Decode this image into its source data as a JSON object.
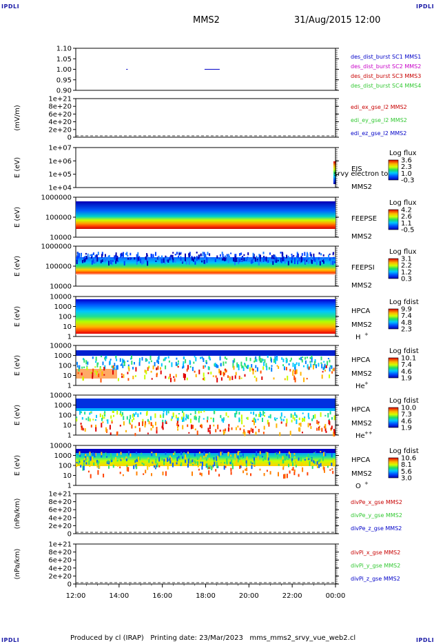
{
  "header": {
    "corner_left_top": "IPDLI",
    "corner_right_top": "IPDLI",
    "corner_left_bottom": "IPDLI",
    "corner_right_bottom": "IPDLI",
    "spacecraft": "MMS2",
    "datetime": "31/Aug/2015 12:00"
  },
  "footer": {
    "text": "Produced by cl (IRAP)   Printing date: 23/Mar/2023   mms_mms2_srvy_vue_web2.cl"
  },
  "colors": {
    "blue": "#0000c8",
    "magenta": "#c800c8",
    "red": "#c80000",
    "green": "#32c832"
  },
  "chart_data": [
    {
      "type": "line",
      "title": "",
      "ylabel": "",
      "ylim": [
        0.9,
        1.1
      ],
      "yticks": [
        "1.10",
        "1.05",
        "1.00",
        "0.95",
        "0.90"
      ],
      "legend": [
        {
          "text": "des_dist_burst SC1 MMS1",
          "color": "blue"
        },
        {
          "text": "des_dist_burst SC2 MMS2",
          "color": "magenta"
        },
        {
          "text": "des_dist_burst SC3 MMS3",
          "color": "red"
        },
        {
          "text": "des_dist_burst SC4 MMS4",
          "color": "green"
        }
      ],
      "series": [
        {
          "name": "des_dist_burst SC2 MMS2",
          "segments": [
            [
              14.33,
              14.4,
              1.0
            ],
            [
              17.95,
              18.65,
              1.0
            ]
          ]
        }
      ]
    },
    {
      "type": "line",
      "ylabel": "(mV/m)",
      "ylim": [
        0,
        1e+21
      ],
      "yticks": [
        "1e+21",
        "8e+20",
        "6e+20",
        "4e+20",
        "2e+20",
        "0"
      ],
      "zero_line": true,
      "legend": [
        {
          "text": "edi_ex_gse_l2 MMS2",
          "color": "red"
        },
        {
          "text": "edi_ey_gse_l2 MMS2",
          "color": "green"
        },
        {
          "text": "edi_ez_gse_l2 MMS2",
          "color": "blue"
        }
      ]
    },
    {
      "type": "heatmap",
      "ylabel": "E (eV)",
      "yticks": [
        "1e+07",
        "1e+06",
        "1e+05",
        "1e+04"
      ],
      "instrument": "EIS",
      "instrument_overlay": "srvy electron to",
      "spacecraft": "MMS2",
      "colorbar": {
        "label": "Log flux",
        "ticks": [
          "3.6",
          "2.3",
          "1.0",
          "-0.3"
        ]
      }
    },
    {
      "type": "heatmap",
      "ylabel": "E (eV)",
      "yticks": [
        "1000000",
        "100000",
        "10000"
      ],
      "instrument": "FEEPSE",
      "spacecraft": "MMS2",
      "colorbar": {
        "label": "Log flux",
        "ticks": [
          "4.2",
          "2.6",
          "1.1",
          "-0.5"
        ]
      }
    },
    {
      "type": "heatmap",
      "ylabel": "E (eV)",
      "yticks": [
        "1000000",
        "100000",
        "10000"
      ],
      "instrument": "FEEPSI",
      "spacecraft": "MMS2",
      "colorbar": {
        "label": "Log flux",
        "ticks": [
          "3.1",
          "2.2",
          "1.2",
          "0.3"
        ]
      }
    },
    {
      "type": "heatmap",
      "ylabel": "E (eV)",
      "yticks": [
        "10000",
        "1000",
        "100",
        "10",
        "1"
      ],
      "instrument": "HPCA",
      "spacecraft": "MMS2",
      "species": "H",
      "charge": "+",
      "colorbar": {
        "label": "Log fdist",
        "ticks": [
          "9.9",
          "7.4",
          "4.8",
          "2.3"
        ]
      }
    },
    {
      "type": "heatmap",
      "ylabel": "E (eV)",
      "yticks": [
        "10000",
        "1000",
        "100",
        "10",
        "1"
      ],
      "instrument": "HPCA",
      "spacecraft": "MMS2",
      "species": "He",
      "charge": "+",
      "colorbar": {
        "label": "Log fdist",
        "ticks": [
          "10.1",
          "7.4",
          "4.6",
          "1.9"
        ]
      }
    },
    {
      "type": "heatmap",
      "ylabel": "E (eV)",
      "yticks": [
        "10000",
        "1000",
        "100",
        "10",
        "1"
      ],
      "instrument": "HPCA",
      "spacecraft": "MMS2",
      "species": "He",
      "charge": "++",
      "colorbar": {
        "label": "Log fdist",
        "ticks": [
          "10.0",
          "7.3",
          "4.6",
          "1.9"
        ]
      }
    },
    {
      "type": "heatmap",
      "ylabel": "E (eV)",
      "yticks": [
        "10000",
        "1000",
        "100",
        "10",
        "1"
      ],
      "instrument": "HPCA",
      "spacecraft": "MMS2",
      "species": "O",
      "charge": "+",
      "colorbar": {
        "label": "Log fdist",
        "ticks": [
          "10.6",
          "8.1",
          "5.6",
          "3.0"
        ]
      }
    },
    {
      "type": "line",
      "ylabel": "(nPa/km)",
      "ylim": [
        0,
        1e+21
      ],
      "yticks": [
        "1e+21",
        "8e+20",
        "6e+20",
        "4e+20",
        "2e+20",
        "0"
      ],
      "zero_line": true,
      "legend": [
        {
          "text": "divPe_x_gse MMS2",
          "color": "red"
        },
        {
          "text": "divPe_y_gse MMS2",
          "color": "green"
        },
        {
          "text": "divPe_z_gse MMS2",
          "color": "blue"
        }
      ]
    },
    {
      "type": "line",
      "ylabel": "(nPa/km)",
      "ylim": [
        0,
        1e+21
      ],
      "yticks": [
        "1e+21",
        "8e+20",
        "6e+20",
        "4e+20",
        "2e+20",
        "0"
      ],
      "zero_line": true,
      "legend": [
        {
          "text": "divPi_x_gse MMS2",
          "color": "red"
        },
        {
          "text": "divPi_y_gse MMS2",
          "color": "green"
        },
        {
          "text": "divPi_z_gse MMS2",
          "color": "blue"
        }
      ]
    }
  ],
  "xaxis": {
    "ticks": [
      "12:00",
      "14:00",
      "16:00",
      "18:00",
      "20:00",
      "22:00",
      "00:00"
    ],
    "range_hours": [
      12,
      24
    ]
  }
}
